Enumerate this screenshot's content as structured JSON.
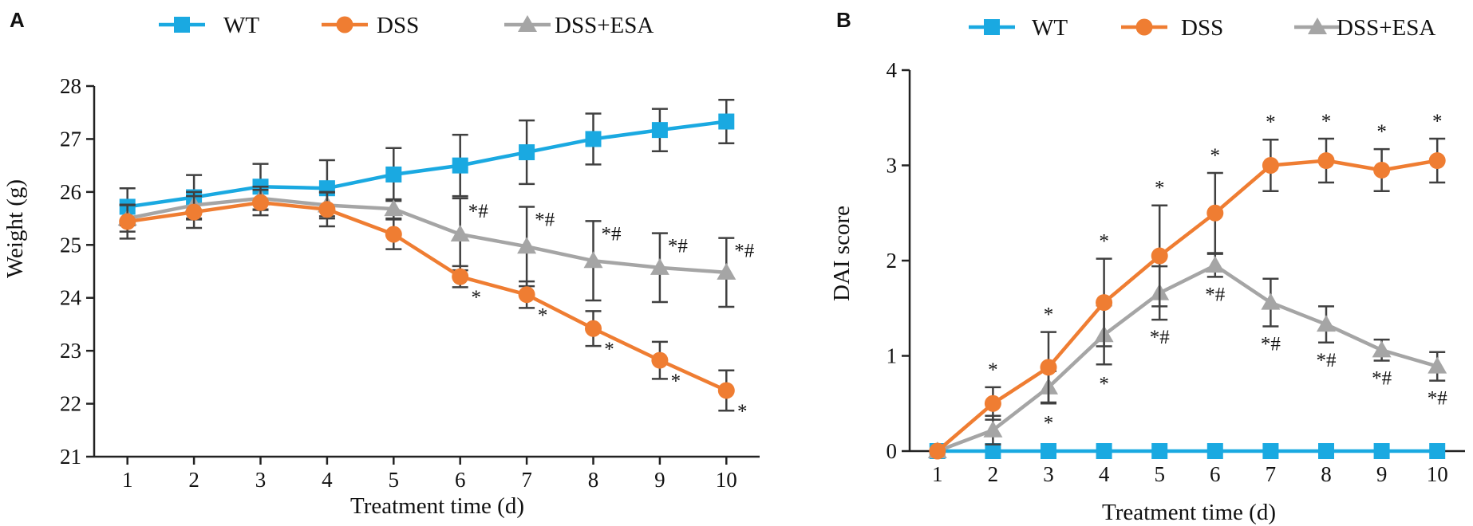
{
  "colors": {
    "WT": "#1aa9e1",
    "DSS": "#ef7d32",
    "DSS+ESA": "#a5a5a5",
    "error_bars": "#404040",
    "axes": "#222222"
  },
  "chart_data": [
    {
      "panel": "A",
      "type": "line",
      "xlabel": "Treatment time (d)",
      "ylabel": "Weight (g)",
      "x": [
        1,
        2,
        3,
        4,
        5,
        6,
        7,
        8,
        9,
        10
      ],
      "xlim": [
        0.5,
        10.5
      ],
      "ylim": [
        21,
        28
      ],
      "yticks": [
        21,
        22,
        23,
        24,
        25,
        26,
        27,
        28
      ],
      "legend": "top",
      "series": [
        {
          "name": "WT",
          "marker": "square",
          "values": [
            25.72,
            25.9,
            26.1,
            26.07,
            26.33,
            26.5,
            26.75,
            27.0,
            27.17,
            27.33
          ],
          "errors": [
            0.35,
            0.42,
            0.43,
            0.53,
            0.5,
            0.58,
            0.6,
            0.48,
            0.4,
            0.41
          ]
        },
        {
          "name": "DSS",
          "marker": "circle",
          "values": [
            25.44,
            25.62,
            25.8,
            25.67,
            25.2,
            24.4,
            24.06,
            23.42,
            22.82,
            22.25
          ],
          "errors": [
            0.32,
            0.3,
            0.24,
            0.32,
            0.28,
            0.2,
            0.25,
            0.33,
            0.35,
            0.38
          ],
          "annotations": [
            "",
            "",
            "",
            "",
            "",
            "*",
            "*",
            "*",
            "*",
            "*"
          ]
        },
        {
          "name": "DSS+ESA",
          "marker": "triangle",
          "values": [
            25.5,
            25.75,
            25.88,
            25.75,
            25.68,
            25.2,
            24.97,
            24.7,
            24.57,
            24.48
          ],
          "errors": [
            0.25,
            0.25,
            0.22,
            0.25,
            0.18,
            0.68,
            0.75,
            0.75,
            0.65,
            0.65
          ],
          "annotations": [
            "",
            "",
            "",
            "",
            "",
            "*#",
            "*#",
            "*#",
            "*#",
            "*#"
          ]
        }
      ]
    },
    {
      "panel": "B",
      "type": "line",
      "xlabel": "Treatment time (d)",
      "ylabel": "DAI score",
      "x": [
        1,
        2,
        3,
        4,
        5,
        6,
        7,
        8,
        9,
        10
      ],
      "xlim": [
        0.5,
        10.5
      ],
      "ylim": [
        0,
        4
      ],
      "yticks": [
        0,
        1,
        2,
        3,
        4
      ],
      "legend": "top",
      "series": [
        {
          "name": "WT",
          "marker": "square",
          "values": [
            0,
            0,
            0,
            0,
            0,
            0,
            0,
            0,
            0,
            0
          ],
          "errors": [
            0,
            0,
            0,
            0,
            0,
            0,
            0,
            0,
            0,
            0
          ]
        },
        {
          "name": "DSS",
          "marker": "circle",
          "values": [
            0,
            0.5,
            0.88,
            1.56,
            2.05,
            2.5,
            3.0,
            3.05,
            2.95,
            3.05
          ],
          "errors": [
            0,
            0.17,
            0.37,
            0.46,
            0.53,
            0.42,
            0.27,
            0.23,
            0.22,
            0.23
          ],
          "annotations": [
            "",
            "*",
            "*",
            "*",
            "*",
            "*",
            "*",
            "*",
            "*",
            "*"
          ]
        },
        {
          "name": "DSS+ESA",
          "marker": "triangle",
          "values": [
            0,
            0.22,
            0.67,
            1.22,
            1.66,
            1.95,
            1.56,
            1.33,
            1.06,
            0.89
          ],
          "errors": [
            0,
            0.15,
            0.17,
            0.31,
            0.28,
            0.12,
            0.25,
            0.19,
            0.11,
            0.15
          ],
          "annotations": [
            "",
            "",
            "*",
            "*",
            "*#",
            "*#",
            "*#",
            "*#",
            "*#",
            "*#"
          ]
        }
      ]
    }
  ]
}
